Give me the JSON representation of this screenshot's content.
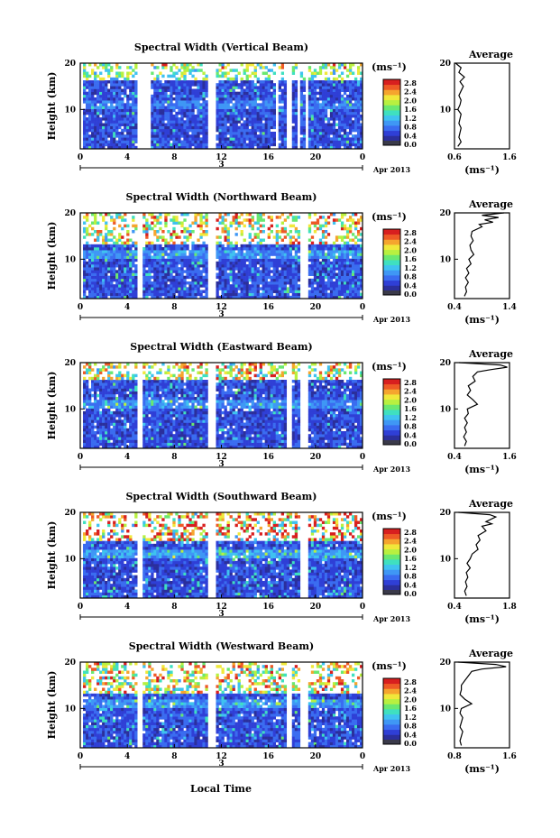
{
  "footer_label": "Local Time",
  "date_label": "Apr 2013",
  "ylabel": "Height (km)",
  "cbar_unit": "(ms⁻¹)",
  "avg_title": "Average",
  "avg_xlabel": "(ms⁻¹)",
  "colors": {
    "scale": [
      "#2b2f9c",
      "#2f3fd6",
      "#3a6cf0",
      "#3f97f5",
      "#3fc2f0",
      "#3fe0c0",
      "#6ae870",
      "#b8f040",
      "#f0e83a",
      "#f5a52e",
      "#ee5a26",
      "#d81f1f"
    ],
    "floor": "#3a3a4a"
  },
  "chart_data": [
    {
      "type": "heatmap",
      "title": "Spectral Width (Vertical Beam)",
      "x_ticks": [
        "0",
        "4",
        "8",
        "12",
        "16",
        "20",
        "0"
      ],
      "mid_label": "3",
      "y_ticks": [
        "20",
        "10"
      ],
      "cbar_ticks": [
        "2.8",
        "2.4",
        "2.0",
        "1.6",
        "1.2",
        "0.8",
        "0.4",
        "0.0"
      ],
      "x_range": [
        0,
        24
      ],
      "y_range": [
        1.5,
        20
      ],
      "gaps": [
        [
          0,
          0.3
        ],
        [
          1.05,
          1.15
        ],
        [
          4.9,
          5.25
        ],
        [
          5.35,
          6.05
        ],
        [
          10.8,
          11.1
        ],
        [
          11.15,
          11.45
        ],
        [
          16.7,
          16.85
        ],
        [
          17.55,
          18.05
        ],
        [
          18.45,
          18.7
        ],
        [
          19.05,
          19.35
        ],
        [
          24,
          24
        ]
      ],
      "sparse_top": [
        16,
        20
      ],
      "intensity": "low",
      "avg": {
        "xlim": [
          0.6,
          1.6
        ],
        "x_ticks": [
          "0.6",
          "1.6"
        ],
        "y_ticks": [
          "20",
          "10"
        ],
        "profile": [
          [
            20,
            0.62
          ],
          [
            19,
            0.72
          ],
          [
            18,
            0.68
          ],
          [
            17,
            0.78
          ],
          [
            16,
            0.7
          ],
          [
            15,
            0.76
          ],
          [
            14,
            0.72
          ],
          [
            13,
            0.68
          ],
          [
            12,
            0.72
          ],
          [
            11,
            0.7
          ],
          [
            10,
            0.66
          ],
          [
            9,
            0.72
          ],
          [
            8,
            0.7
          ],
          [
            7,
            0.68
          ],
          [
            6,
            0.72
          ],
          [
            5,
            0.7
          ],
          [
            4,
            0.68
          ],
          [
            3,
            0.72
          ],
          [
            2,
            0.66
          ]
        ]
      }
    },
    {
      "type": "heatmap",
      "title": "Spectral Width (Northward Beam)",
      "x_ticks": [
        "0",
        "4",
        "8",
        "12",
        "16",
        "20",
        "0"
      ],
      "mid_label": "3",
      "y_ticks": [
        "20",
        "10"
      ],
      "cbar_ticks": [
        "2.8",
        "2.4",
        "2.0",
        "1.6",
        "1.2",
        "0.8",
        "0.4",
        "0.0"
      ],
      "x_range": [
        0,
        24
      ],
      "y_range": [
        1.5,
        20
      ],
      "gaps": [
        [
          0,
          0.3
        ],
        [
          1.05,
          1.15
        ],
        [
          4.9,
          5.25
        ],
        [
          10.8,
          11.45
        ],
        [
          18.35,
          18.5
        ],
        [
          18.8,
          19.35
        ],
        [
          24,
          24
        ]
      ],
      "sparse_top": [
        13,
        20
      ],
      "intensity": "mid",
      "avg": {
        "xlim": [
          0.4,
          1.4
        ],
        "x_ticks": [
          "0.4",
          "1.4"
        ],
        "y_ticks": [
          "20",
          "10"
        ],
        "profile": [
          [
            20,
            1.3
          ],
          [
            19.5,
            0.9
          ],
          [
            19,
            1.2
          ],
          [
            18.5,
            0.95
          ],
          [
            18,
            1.1
          ],
          [
            17.5,
            0.85
          ],
          [
            17,
            0.9
          ],
          [
            16,
            0.72
          ],
          [
            15,
            0.7
          ],
          [
            14,
            0.74
          ],
          [
            13,
            0.68
          ],
          [
            12,
            0.7
          ],
          [
            11,
            0.75
          ],
          [
            10,
            0.66
          ],
          [
            9,
            0.7
          ],
          [
            8,
            0.62
          ],
          [
            7,
            0.66
          ],
          [
            6,
            0.6
          ],
          [
            5,
            0.65
          ],
          [
            4,
            0.6
          ],
          [
            3,
            0.62
          ],
          [
            2,
            0.58
          ]
        ]
      }
    },
    {
      "type": "heatmap",
      "title": "Spectral Width (Eastward Beam)",
      "x_ticks": [
        "0",
        "4",
        "8",
        "12",
        "16",
        "20",
        "0"
      ],
      "mid_label": "3",
      "y_ticks": [
        "20",
        "10"
      ],
      "cbar_ticks": [
        "2.8",
        "2.4",
        "2.0",
        "1.6",
        "1.2",
        "0.8",
        "0.4",
        "0.0"
      ],
      "x_range": [
        0,
        24
      ],
      "y_range": [
        1.5,
        20
      ],
      "gaps": [
        [
          0,
          0.3
        ],
        [
          1.05,
          1.15
        ],
        [
          4.9,
          5.25
        ],
        [
          10.8,
          11.45
        ],
        [
          17.55,
          18.05
        ],
        [
          18.8,
          19.35
        ],
        [
          24,
          24
        ]
      ],
      "sparse_top": [
        16,
        20
      ],
      "intensity": "mid",
      "avg": {
        "xlim": [
          0.4,
          1.6
        ],
        "x_ticks": [
          "0.4",
          "1.6"
        ],
        "y_ticks": [
          "20",
          "10"
        ],
        "profile": [
          [
            20,
            0.5
          ],
          [
            19.5,
            1.4
          ],
          [
            19,
            1.55
          ],
          [
            18.5,
            1.2
          ],
          [
            18,
            0.9
          ],
          [
            17,
            0.8
          ],
          [
            16,
            0.85
          ],
          [
            15,
            0.7
          ],
          [
            14,
            0.75
          ],
          [
            13,
            0.68
          ],
          [
            12,
            0.8
          ],
          [
            11,
            0.9
          ],
          [
            10,
            0.68
          ],
          [
            9,
            0.7
          ],
          [
            8,
            0.62
          ],
          [
            7,
            0.68
          ],
          [
            6,
            0.62
          ],
          [
            5,
            0.66
          ],
          [
            4,
            0.6
          ],
          [
            3,
            0.66
          ],
          [
            2,
            0.62
          ]
        ]
      }
    },
    {
      "type": "heatmap",
      "title": "Spectral Width (Southward Beam)",
      "x_ticks": [
        "0",
        "4",
        "8",
        "12",
        "16",
        "20",
        "0"
      ],
      "mid_label": "3",
      "y_ticks": [
        "20",
        "10"
      ],
      "cbar_ticks": [
        "2.8",
        "2.4",
        "2.0",
        "1.6",
        "1.2",
        "0.8",
        "0.4",
        "0.0"
      ],
      "x_range": [
        0,
        24
      ],
      "y_range": [
        1.5,
        20
      ],
      "gaps": [
        [
          0,
          0.3
        ],
        [
          1.05,
          1.15
        ],
        [
          4.9,
          5.25
        ],
        [
          10.8,
          11.45
        ],
        [
          18.35,
          18.5
        ],
        [
          18.8,
          19.35
        ],
        [
          24,
          24
        ]
      ],
      "sparse_top": [
        14,
        20
      ],
      "intensity": "high",
      "avg": {
        "xlim": [
          0.4,
          1.8
        ],
        "x_ticks": [
          "0.4",
          "1.8"
        ],
        "y_ticks": [
          "20",
          "10"
        ],
        "profile": [
          [
            20,
            0.5
          ],
          [
            19.5,
            1.3
          ],
          [
            19,
            1.45
          ],
          [
            18,
            1.2
          ],
          [
            17.5,
            1.35
          ],
          [
            17,
            1.1
          ],
          [
            16,
            1.2
          ],
          [
            15,
            1.0
          ],
          [
            14,
            1.05
          ],
          [
            13,
            0.95
          ],
          [
            12,
            1.0
          ],
          [
            11,
            0.85
          ],
          [
            10,
            0.8
          ],
          [
            9,
            0.72
          ],
          [
            8,
            0.8
          ],
          [
            7,
            0.7
          ],
          [
            6,
            0.74
          ],
          [
            5,
            0.68
          ],
          [
            4,
            0.72
          ],
          [
            3,
            0.66
          ],
          [
            2,
            0.7
          ]
        ]
      }
    },
    {
      "type": "heatmap",
      "title": "Spectral Width (Westward Beam)",
      "x_ticks": [
        "0",
        "4",
        "8",
        "12",
        "16",
        "20",
        "0"
      ],
      "mid_label": "3",
      "y_ticks": [
        "20",
        "10"
      ],
      "cbar_ticks": [
        "2.8",
        "2.4",
        "2.0",
        "1.6",
        "1.2",
        "0.8",
        "0.4",
        "0.0"
      ],
      "x_range": [
        0,
        24
      ],
      "y_range": [
        1.5,
        20
      ],
      "gaps": [
        [
          0,
          0.3
        ],
        [
          1.05,
          1.15
        ],
        [
          4.9,
          5.25
        ],
        [
          10.8,
          11.45
        ],
        [
          17.55,
          18.05
        ],
        [
          18.8,
          19.35
        ],
        [
          24,
          24
        ]
      ],
      "sparse_top": [
        13,
        20
      ],
      "intensity": "mid",
      "avg": {
        "xlim": [
          0.8,
          1.6
        ],
        "x_ticks": [
          "0.8",
          "1.6"
        ],
        "y_ticks": [
          "20",
          "10"
        ],
        "profile": [
          [
            20,
            0.85
          ],
          [
            19.5,
            1.4
          ],
          [
            19,
            1.55
          ],
          [
            18.5,
            1.2
          ],
          [
            18,
            1.05
          ],
          [
            17,
            1.0
          ],
          [
            16,
            0.95
          ],
          [
            15,
            0.9
          ],
          [
            14,
            0.9
          ],
          [
            13,
            0.88
          ],
          [
            12,
            0.95
          ],
          [
            11,
            1.05
          ],
          [
            10,
            0.9
          ],
          [
            9,
            0.88
          ],
          [
            8,
            0.92
          ],
          [
            7,
            0.9
          ],
          [
            6,
            0.88
          ],
          [
            5,
            0.92
          ],
          [
            4,
            0.9
          ],
          [
            3,
            0.88
          ],
          [
            2,
            0.9
          ]
        ]
      }
    }
  ]
}
